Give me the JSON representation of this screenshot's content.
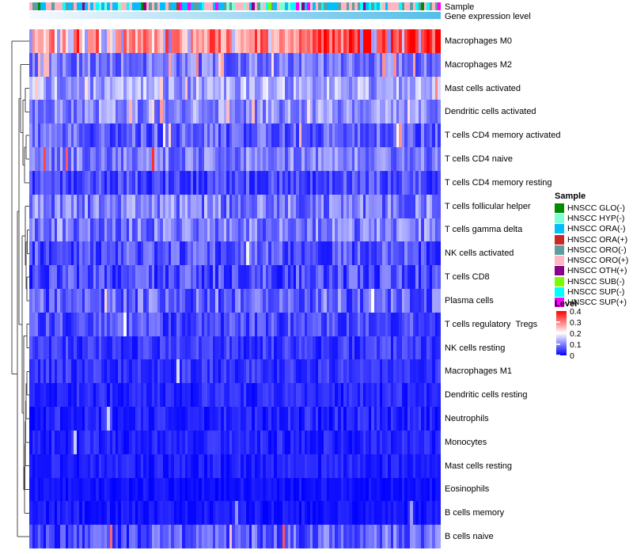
{
  "annotation_labels": {
    "sample": "Sample",
    "gene_expression_level": "Gene expression level"
  },
  "legends": {
    "sample_title": "Sample",
    "level_title": "Level",
    "level_ticks": [
      "0.4",
      "0.3",
      "0.2",
      "0.1",
      "0"
    ]
  },
  "chart_data": {
    "type": "heatmap",
    "n_columns": 148,
    "n_rows": 22,
    "value_scale": {
      "min": 0,
      "max": 0.4,
      "low_color": "#0000FF",
      "mid_color": "#FFFFFF",
      "high_color": "#FF0000"
    },
    "rows": [
      {
        "name": "Macrophages M0",
        "mean_level": 0.31,
        "spread": 0.08,
        "trend": 0.09,
        "high_p": 0.05,
        "high_range": [
          0.37,
          0.4
        ],
        "low_p": 0.15,
        "low_range": [
          0.1,
          0.17
        ]
      },
      {
        "name": "Macrophages M2",
        "mean_level": 0.095,
        "spread": 0.05,
        "trend": 0.0,
        "high_p": 0.06,
        "high_range": [
          0.22,
          0.3
        ],
        "low_p": 0,
        "low_range": [
          0,
          0
        ]
      },
      {
        "name": "Mast cells activated",
        "mean_level": 0.13,
        "spread": 0.06,
        "trend": 0.0,
        "high_p": 0.04,
        "high_range": [
          0.22,
          0.3
        ],
        "low_p": 0,
        "low_range": [
          0,
          0
        ]
      },
      {
        "name": "Dendritic cells activated",
        "mean_level": 0.11,
        "spread": 0.055,
        "trend": 0.0,
        "high_p": 0.03,
        "high_range": [
          0.22,
          0.28
        ],
        "low_p": 0,
        "low_range": [
          0,
          0
        ]
      },
      {
        "name": "T cells CD4 memory activated",
        "mean_level": 0.075,
        "spread": 0.05,
        "trend": 0.0,
        "high_p": 0.02,
        "high_range": [
          0.2,
          0.3
        ],
        "low_p": 0,
        "low_range": [
          0,
          0
        ]
      },
      {
        "name": "T cells CD4 naive",
        "mean_level": 0.1,
        "spread": 0.05,
        "trend": 0.0,
        "high_p": 0.015,
        "high_range": [
          0.3,
          0.4
        ],
        "low_p": 0,
        "low_range": [
          0,
          0
        ]
      },
      {
        "name": "T cells CD4 memory resting",
        "mean_level": 0.06,
        "spread": 0.045,
        "trend": 0.0,
        "high_p": 0.01,
        "high_range": [
          0.2,
          0.28
        ],
        "low_p": 0,
        "low_range": [
          0,
          0
        ]
      },
      {
        "name": "T cells follicular helper",
        "mean_level": 0.1,
        "spread": 0.06,
        "trend": 0.0,
        "high_p": 0.01,
        "high_range": [
          0.18,
          0.22
        ],
        "low_p": 0,
        "low_range": [
          0,
          0
        ]
      },
      {
        "name": "T cells gamma delta",
        "mean_level": 0.1,
        "spread": 0.06,
        "trend": 0.0,
        "high_p": 0.01,
        "high_range": [
          0.18,
          0.22
        ],
        "low_p": 0,
        "low_range": [
          0,
          0
        ]
      },
      {
        "name": "NK cells activated",
        "mean_level": 0.065,
        "spread": 0.05,
        "trend": 0.0,
        "high_p": 0.01,
        "high_range": [
          0.18,
          0.22
        ],
        "low_p": 0,
        "low_range": [
          0,
          0
        ]
      },
      {
        "name": "T cells CD8",
        "mean_level": 0.06,
        "spread": 0.05,
        "trend": 0.0,
        "high_p": 0.015,
        "high_range": [
          0.18,
          0.24
        ],
        "low_p": 0,
        "low_range": [
          0,
          0
        ]
      },
      {
        "name": "Plasma cells",
        "mean_level": 0.08,
        "spread": 0.06,
        "trend": 0.0,
        "high_p": 0.02,
        "high_range": [
          0.2,
          0.3
        ],
        "low_p": 0,
        "low_range": [
          0,
          0
        ]
      },
      {
        "name": "T cells regulatory  Tregs",
        "mean_level": 0.06,
        "spread": 0.045,
        "trend": 0.0,
        "high_p": 0.005,
        "high_range": [
          0.18,
          0.22
        ],
        "low_p": 0,
        "low_range": [
          0,
          0
        ]
      },
      {
        "name": "NK cells resting",
        "mean_level": 0.045,
        "spread": 0.035,
        "trend": 0.0,
        "high_p": 0.005,
        "high_range": [
          0.15,
          0.2
        ],
        "low_p": 0,
        "low_range": [
          0,
          0
        ]
      },
      {
        "name": "Macrophages M1",
        "mean_level": 0.04,
        "spread": 0.03,
        "trend": 0.0,
        "high_p": 0.004,
        "high_range": [
          0.15,
          0.2
        ],
        "low_p": 0,
        "low_range": [
          0,
          0
        ]
      },
      {
        "name": "Dendritic cells resting",
        "mean_level": 0.03,
        "spread": 0.028,
        "trend": 0.0,
        "high_p": 0.003,
        "high_range": [
          0.12,
          0.18
        ],
        "low_p": 0,
        "low_range": [
          0,
          0
        ]
      },
      {
        "name": "Neutrophils",
        "mean_level": 0.03,
        "spread": 0.03,
        "trend": 0.0,
        "high_p": 0.005,
        "high_range": [
          0.12,
          0.18
        ],
        "low_p": 0,
        "low_range": [
          0,
          0
        ]
      },
      {
        "name": "Monocytes",
        "mean_level": 0.028,
        "spread": 0.025,
        "trend": 0.0,
        "high_p": 0.003,
        "high_range": [
          0.12,
          0.16
        ],
        "low_p": 0,
        "low_range": [
          0,
          0
        ]
      },
      {
        "name": "Mast cells resting",
        "mean_level": 0.025,
        "spread": 0.022,
        "trend": 0.0,
        "high_p": 0.003,
        "high_range": [
          0.12,
          0.16
        ],
        "low_p": 0,
        "low_range": [
          0,
          0
        ]
      },
      {
        "name": "Eosinophils",
        "mean_level": 0.015,
        "spread": 0.015,
        "trend": 0.0,
        "high_p": 0.002,
        "high_range": [
          0.1,
          0.14
        ],
        "low_p": 0,
        "low_range": [
          0,
          0
        ]
      },
      {
        "name": "B cells memory",
        "mean_level": 0.02,
        "spread": 0.02,
        "trend": 0.0,
        "high_p": 0.003,
        "high_range": [
          0.1,
          0.14
        ],
        "low_p": 0,
        "low_range": [
          0,
          0
        ]
      },
      {
        "name": "B cells naive",
        "mean_level": 0.07,
        "spread": 0.055,
        "trend": 0.03,
        "high_p": 0.02,
        "high_range": [
          0.25,
          0.35
        ],
        "low_p": 0,
        "low_range": [
          0,
          0
        ]
      }
    ],
    "column_annotations": {
      "sample": {
        "label": "Sample",
        "type": "categorical",
        "categories": [
          {
            "label": "HNSCC GLO(-)",
            "color": "#008B00",
            "weight": 0.03
          },
          {
            "label": "HNSCC HYP(-)",
            "color": "#7FFFD4",
            "weight": 0.08
          },
          {
            "label": "HNSCC ORA(-)",
            "color": "#00BFFF",
            "weight": 0.22
          },
          {
            "label": "HNSCC ORA(+)",
            "color": "#CD2626",
            "weight": 0.025
          },
          {
            "label": "HNSCC ORO(-)",
            "color": "#5F9EA0",
            "weight": 0.16
          },
          {
            "label": "HNSCC ORO(+)",
            "color": "#FFB6C1",
            "weight": 0.3
          },
          {
            "label": "HNSCC OTH(+)",
            "color": "#8B008B",
            "weight": 0.025
          },
          {
            "label": "HNSCC SUB(-)",
            "color": "#7CFC00",
            "weight": 0.025
          },
          {
            "label": "HNSCC SUP(-)",
            "color": "#00FFFF",
            "weight": 0.09
          },
          {
            "label": "HNSCC SUP(+)",
            "color": "#FF00FF",
            "weight": 0.025
          }
        ]
      },
      "gene_expression_level": {
        "label": "Gene expression level",
        "type": "continuous-gradient",
        "left_color": "#F5F9FE",
        "right_color": "#57BEE8"
      }
    },
    "row_dendrogram_segments": [
      [
        37,
        51.9,
        15,
        51.9
      ],
      [
        22,
        472.7,
        15,
        472.7
      ],
      [
        15,
        51.9,
        15,
        472.7
      ],
      [
        24,
        267.2,
        22,
        267.2
      ],
      [
        37,
        678.1,
        22,
        678.1
      ],
      [
        22,
        267.2,
        22,
        678.1
      ],
      [
        26,
        124.6,
        24,
        124.6
      ],
      [
        28,
        409.9,
        24,
        409.9
      ],
      [
        24,
        124.6,
        24,
        409.9
      ],
      [
        37,
        81.7,
        26,
        81.7
      ],
      [
        29,
        167.5,
        26,
        167.5
      ],
      [
        26,
        81.7,
        26,
        167.5
      ],
      [
        32,
        126.5,
        29,
        126.5
      ],
      [
        31,
        208.5,
        29,
        208.5
      ],
      [
        29,
        126.5,
        29,
        208.5
      ],
      [
        37,
        111.5,
        32,
        111.5
      ],
      [
        37,
        141.4,
        32,
        141.4
      ],
      [
        32,
        111.5,
        32,
        141.4
      ],
      [
        33,
        186.1,
        31,
        186.1
      ],
      [
        37,
        230.8,
        31,
        230.8
      ],
      [
        31,
        186.1,
        31,
        230.8
      ],
      [
        37,
        171.2,
        33,
        171.2
      ],
      [
        37,
        201.0,
        33,
        201.0
      ],
      [
        33,
        171.2,
        33,
        201.0
      ],
      [
        32,
        297.9,
        28,
        297.9
      ],
      [
        30,
        521.8,
        28,
        521.8
      ],
      [
        28,
        297.9,
        28,
        521.8
      ],
      [
        37,
        260.6,
        32,
        260.6
      ],
      [
        33,
        335.2,
        32,
        335.2
      ],
      [
        32,
        260.6,
        32,
        335.2
      ],
      [
        34.5,
        305.4,
        33,
        305.4
      ],
      [
        34,
        365.0,
        33,
        365.0
      ],
      [
        33,
        305.4,
        33,
        365.0
      ],
      [
        37,
        290.5,
        34.5,
        290.5
      ],
      [
        37,
        320.3,
        34.5,
        320.3
      ],
      [
        34.5,
        290.5,
        34.5,
        320.3
      ],
      [
        37,
        350.1,
        34,
        350.1
      ],
      [
        37,
        379.9,
        34,
        379.9
      ],
      [
        34,
        350.1,
        34,
        379.9
      ],
      [
        34,
        424.7,
        30,
        424.7
      ],
      [
        31,
        619.0,
        30,
        619.0
      ],
      [
        30,
        424.7,
        30,
        619.0
      ],
      [
        37,
        409.7,
        34,
        409.7
      ],
      [
        37,
        439.6,
        34,
        439.6
      ],
      [
        34,
        409.7,
        34,
        439.6
      ],
      [
        31.5,
        589.6,
        31,
        589.6
      ],
      [
        37,
        648.3,
        31,
        648.3
      ],
      [
        31,
        589.6,
        31,
        648.3
      ],
      [
        32,
        560.7,
        31.5,
        560.7
      ],
      [
        37,
        618.5,
        31.5,
        618.5
      ],
      [
        31.5,
        560.7,
        31.5,
        618.5
      ],
      [
        32.5,
        532.7,
        32,
        532.7
      ],
      [
        37,
        588.7,
        32,
        588.7
      ],
      [
        32,
        532.7,
        32,
        588.7
      ],
      [
        33,
        506.7,
        32.5,
        506.7
      ],
      [
        37,
        558.8,
        32.5,
        558.8
      ],
      [
        32.5,
        506.7,
        32.5,
        558.8
      ],
      [
        34,
        484.3,
        33,
        484.3
      ],
      [
        37,
        529.0,
        33,
        529.0
      ],
      [
        33,
        484.3,
        33,
        529.0
      ],
      [
        37,
        469.4,
        34,
        469.4
      ],
      [
        37,
        499.2,
        34,
        499.2
      ],
      [
        34,
        469.4,
        34,
        499.2
      ]
    ]
  }
}
